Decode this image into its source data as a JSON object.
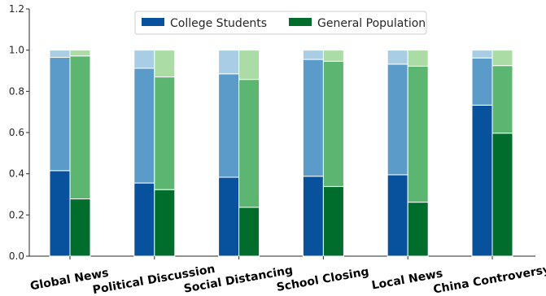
{
  "chart_data": {
    "type": "bar",
    "stacked": true,
    "categories": [
      "Global News",
      "Political Discussion",
      "Social Distancing",
      "School Closing",
      "Local News",
      "China Controversy"
    ],
    "ylim": [
      0,
      1.2
    ],
    "yticks": [
      0.0,
      0.2,
      0.4,
      0.6,
      0.8,
      1.0,
      1.2
    ],
    "ytick_labels": [
      "0.0",
      "0.2",
      "0.4",
      "0.6",
      "0.8",
      "1.0",
      "1.2"
    ],
    "grid": false,
    "legend_position": "top-center",
    "series": [
      {
        "name": "College Students",
        "legend": true,
        "stack_cumulative": [
          [
            0.415,
            0.965,
            1.0
          ],
          [
            0.355,
            0.912,
            1.0
          ],
          [
            0.383,
            0.885,
            1.0
          ],
          [
            0.388,
            0.955,
            1.0
          ],
          [
            0.395,
            0.932,
            1.0
          ],
          [
            0.733,
            0.962,
            1.0
          ]
        ],
        "colors": [
          "#08519c",
          "#5b9bc9",
          "#a8cde4"
        ]
      },
      {
        "name": "General Population",
        "legend": true,
        "stack_cumulative": [
          [
            0.278,
            0.972,
            1.0
          ],
          [
            0.323,
            0.87,
            1.0
          ],
          [
            0.237,
            0.858,
            1.0
          ],
          [
            0.338,
            0.946,
            1.0
          ],
          [
            0.262,
            0.922,
            1.0
          ],
          [
            0.597,
            0.925,
            1.0
          ]
        ],
        "colors": [
          "#006d2c",
          "#5cb671",
          "#abdca6"
        ]
      }
    ]
  }
}
